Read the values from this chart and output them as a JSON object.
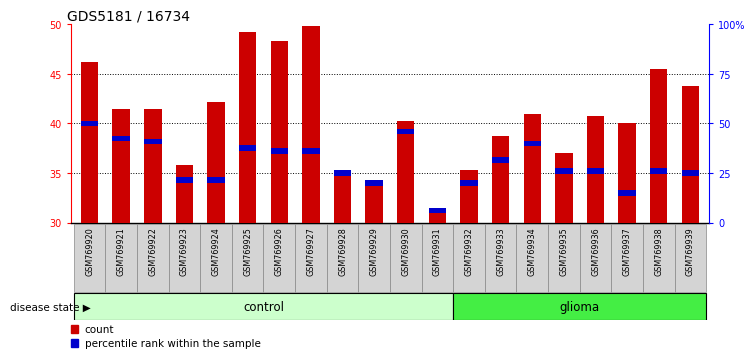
{
  "title": "GDS5181 / 16734",
  "samples": [
    "GSM769920",
    "GSM769921",
    "GSM769922",
    "GSM769923",
    "GSM769924",
    "GSM769925",
    "GSM769926",
    "GSM769927",
    "GSM769928",
    "GSM769929",
    "GSM769930",
    "GSM769931",
    "GSM769932",
    "GSM769933",
    "GSM769934",
    "GSM769935",
    "GSM769936",
    "GSM769937",
    "GSM769938",
    "GSM769939"
  ],
  "counts": [
    46.2,
    41.5,
    41.5,
    35.8,
    42.2,
    49.2,
    48.3,
    49.8,
    35.0,
    34.2,
    40.2,
    31.2,
    35.3,
    38.7,
    41.0,
    37.0,
    40.8,
    40.0,
    45.5,
    43.8
  ],
  "percentile_ranks": [
    40.0,
    38.5,
    38.2,
    34.3,
    34.3,
    37.5,
    37.2,
    37.2,
    35.0,
    34.0,
    39.2,
    31.2,
    34.0,
    36.3,
    38.0,
    35.2,
    35.2,
    33.0,
    35.2,
    35.0
  ],
  "ylim": [
    30,
    50
  ],
  "yticks": [
    30,
    35,
    40,
    45,
    50
  ],
  "right_yticks": [
    0,
    25,
    50,
    75,
    100
  ],
  "right_ylabels": [
    "0",
    "25",
    "50",
    "75",
    "100%"
  ],
  "bar_color": "#cc0000",
  "marker_color": "#0000cc",
  "control_count": 12,
  "glioma_count": 8,
  "control_label": "control",
  "glioma_label": "glioma",
  "disease_state_label": "disease state",
  "legend_count_label": "count",
  "legend_pct_label": "percentile rank within the sample",
  "bg_xticklabels": "#d4d4d4",
  "bg_control": "#ccffcc",
  "bg_glioma": "#44ee44",
  "title_fontsize": 10,
  "tick_fontsize": 7,
  "label_fontsize": 8
}
